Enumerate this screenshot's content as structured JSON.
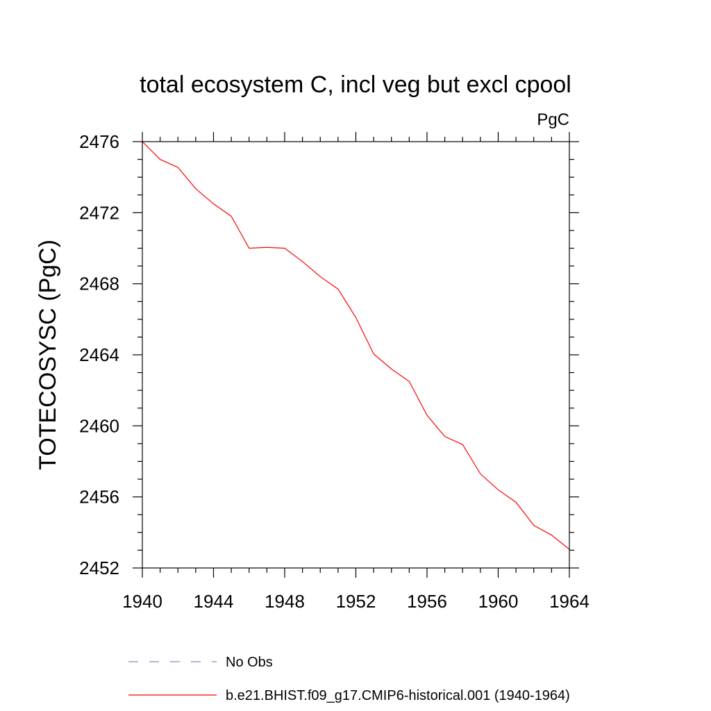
{
  "chart_data": {
    "type": "line",
    "title": "total ecosystem C, incl veg but excl cpool",
    "units_label": "PgC",
    "ylabel": "TOTECOSYSC  (PgC)",
    "xlabel": "",
    "xlim": [
      1940,
      1964
    ],
    "ylim": [
      2452,
      2476
    ],
    "x_ticks": [
      1940,
      1944,
      1948,
      1952,
      1956,
      1960,
      1964
    ],
    "y_ticks": [
      2452,
      2456,
      2460,
      2464,
      2468,
      2472,
      2476
    ],
    "x_tick_labels": [
      "1940",
      "1944",
      "1948",
      "1952",
      "1956",
      "1960",
      "1964"
    ],
    "y_tick_labels": [
      "2452",
      "2456",
      "2460",
      "2464",
      "2468",
      "2472",
      "2476"
    ],
    "grid": false,
    "legend_position": "bottom",
    "series": [
      {
        "name": "b.e21.BHIST.f09_g17.CMIP6-historical.001 (1940-1964)",
        "color": "#ff0000",
        "style": "solid",
        "x": [
          1940,
          1941,
          1942,
          1943,
          1944,
          1945,
          1946,
          1947,
          1948,
          1949,
          1950,
          1951,
          1952,
          1953,
          1954,
          1955,
          1956,
          1957,
          1958,
          1959,
          1960,
          1961,
          1962,
          1963,
          1964
        ],
        "y": [
          2476.0,
          2475.0,
          2474.55,
          2473.35,
          2472.5,
          2471.8,
          2470.0,
          2470.05,
          2470.0,
          2469.25,
          2468.4,
          2467.7,
          2466.1,
          2464.05,
          2463.2,
          2462.5,
          2460.6,
          2459.4,
          2458.95,
          2457.3,
          2456.4,
          2455.7,
          2454.4,
          2453.85,
          2453.05
        ]
      }
    ],
    "legend": [
      {
        "label": "No Obs",
        "color": "#8a82c8",
        "style": "dashed"
      },
      {
        "label": "b.e21.BHIST.f09_g17.CMIP6-historical.001 (1940-1964)",
        "color": "#ff0000",
        "style": "solid"
      }
    ]
  }
}
